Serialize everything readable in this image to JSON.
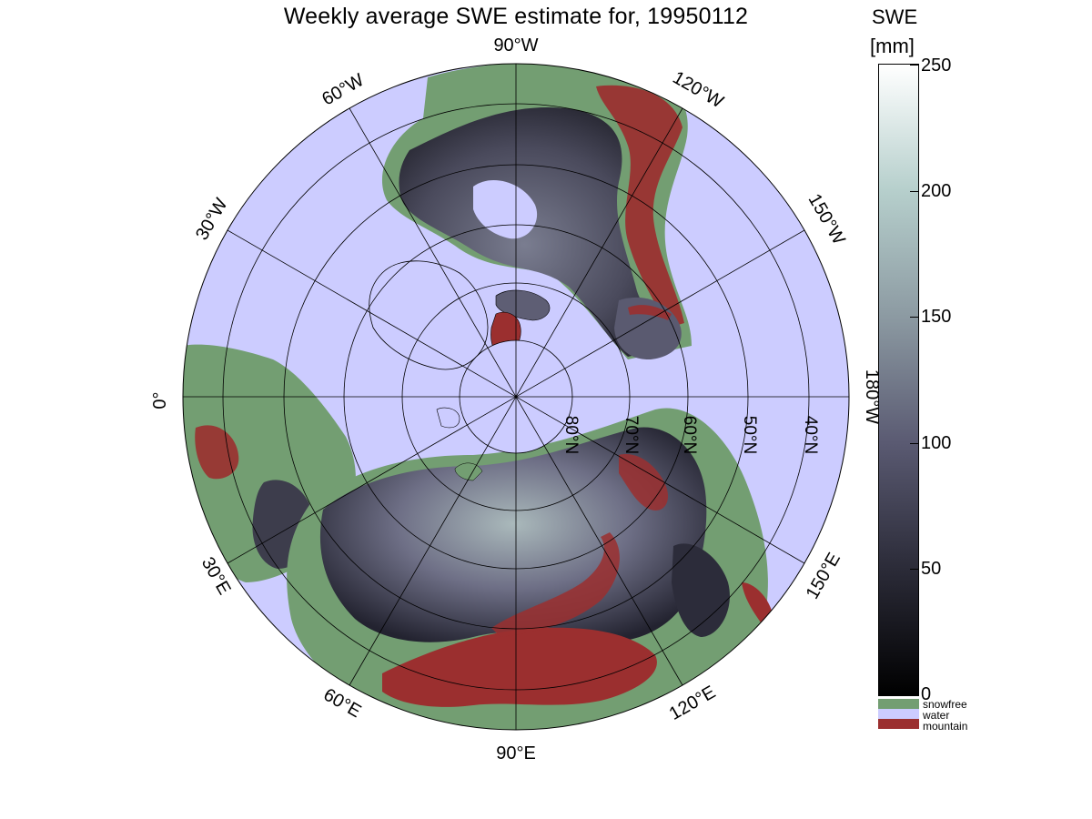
{
  "title": "Weekly average SWE estimate for, 19950112",
  "colorbar": {
    "title": "SWE",
    "units": "[mm]",
    "ticks": [
      "0",
      "50",
      "100",
      "150",
      "200",
      "250"
    ],
    "range": [
      0,
      250
    ],
    "colors": [
      "#000000",
      "#2b2b38",
      "#5a5a72",
      "#8c9aa2",
      "#b6cfcc",
      "#ffffff"
    ]
  },
  "legend": [
    {
      "label": "snowfree",
      "color": "#739e72"
    },
    {
      "label": "water",
      "color": "#ccccff"
    },
    {
      "label": "mountain",
      "color": "#9b2f2f"
    }
  ],
  "map": {
    "projection": "north polar stereographic",
    "longitude_labels": [
      "90°W",
      "120°W",
      "150°W",
      "180°W",
      "150°E",
      "120°E",
      "90°E",
      "60°E",
      "30°E",
      "0°",
      "30°W",
      "60°W"
    ],
    "latitude_labels": [
      "80°N",
      "70°N",
      "60°N",
      "50°N",
      "40°N"
    ],
    "colors": {
      "ocean": "#ccccff",
      "snowfree": "#739e72",
      "mountain": "#9b2f2f",
      "grid": "#000000"
    }
  }
}
